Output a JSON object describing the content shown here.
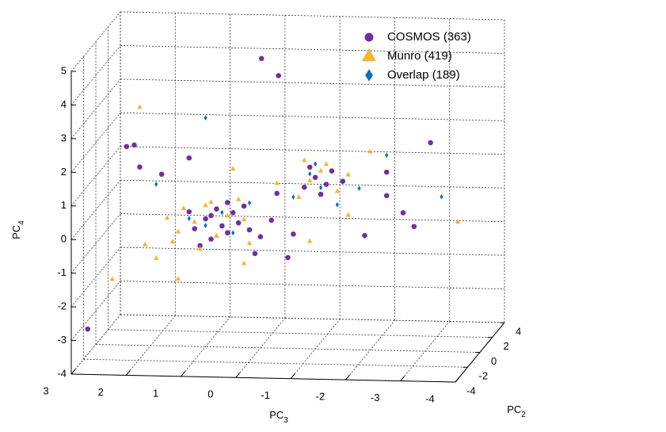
{
  "chart_data": {
    "type": "scatter3d",
    "xlabel": {
      "text": "PC",
      "sub": "3"
    },
    "ylabel": {
      "text": "PC",
      "sub": "2"
    },
    "zlabel": {
      "text": "PC",
      "sub": "4"
    },
    "xlim": [
      3,
      -4
    ],
    "xticks": [
      3,
      2,
      1,
      0,
      -1,
      -2,
      -3,
      -4
    ],
    "ylim": [
      -4,
      4
    ],
    "yticks": [
      -4,
      -2,
      0,
      2,
      4
    ],
    "zlim": [
      -4,
      5
    ],
    "zticks": [
      -4,
      -3,
      -2,
      -1,
      0,
      1,
      2,
      3,
      4,
      5
    ],
    "grid": true,
    "legend": "upper right",
    "series": [
      {
        "name": "COSMOS (363)",
        "color": "#7030a0",
        "marker": "circle",
        "x": [
          1.2,
          1.0,
          0.8,
          0.6,
          0.4,
          0.9,
          0.5,
          0.2,
          1.3,
          0.7,
          0.3,
          0.0,
          1.1,
          0.6,
          -0.2,
          0.9,
          -0.8,
          -1.0,
          -1.2,
          -0.9,
          -1.3,
          -1.1,
          -1.5,
          -0.02,
          -0.33,
          -3.1,
          2.44,
          2.3,
          2.7,
          -2.6,
          -2.8,
          -2.3,
          -0.5,
          0.1,
          1.8,
          2.2,
          1.3,
          -1.9,
          -2.3,
          -0.3,
          -0.6
        ],
        "y": [
          0,
          0,
          0,
          0,
          0,
          0,
          0,
          0,
          0,
          0,
          0,
          0,
          0,
          0,
          0,
          0,
          0,
          0,
          0,
          0,
          0,
          0,
          0,
          0,
          0,
          0,
          0,
          0,
          -4,
          0,
          0,
          0,
          0,
          0,
          0,
          0,
          0,
          0,
          0,
          0,
          0
        ],
        "z": [
          -0.5,
          -0.2,
          0.1,
          -0.6,
          -0.3,
          -0.8,
          0.0,
          -0.5,
          0.0,
          -0.4,
          0.2,
          -0.7,
          -1.0,
          0.3,
          -0.2,
          -0.1,
          0.8,
          1.1,
          0.9,
          1.4,
          1.3,
          0.6,
          1.0,
          4.6,
          4.1,
          2.2,
          1.9,
          1.95,
          -2.65,
          0.1,
          -0.3,
          0.6,
          -1.3,
          -1.2,
          1.1,
          1.3,
          1.6,
          -0.6,
          1.3,
          0.6,
          -0.6
        ]
      },
      {
        "name": "Munro (419)",
        "color": "#f2b632",
        "marker": "triangle",
        "x": [
          1.5,
          1.4,
          1.2,
          1.0,
          0.8,
          0.6,
          0.4,
          1.1,
          1.6,
          0.2,
          0.9,
          1.7,
          0.3,
          1.9,
          2.1,
          -0.7,
          -0.9,
          -1.1,
          -0.8,
          -1.4,
          -1.2,
          -1.6,
          2.2,
          2.7,
          -3.6,
          0.5,
          -0.3,
          1.5,
          -0.9,
          -2.0,
          -1.6,
          0.3
        ],
        "y": [
          0,
          0,
          0,
          0,
          0,
          0,
          0,
          0,
          0,
          0,
          0,
          0,
          0,
          0,
          0,
          0,
          0,
          0,
          0,
          0,
          0,
          0,
          0,
          0,
          0,
          0,
          0,
          0,
          0,
          0,
          0,
          0
        ],
        "z": [
          -0.6,
          0.1,
          -0.3,
          0.2,
          -0.7,
          -0.1,
          0.4,
          -1.1,
          -0.9,
          -0.9,
          0.3,
          -0.2,
          -0.2,
          -1.4,
          -1.0,
          0.5,
          1.0,
          1.3,
          1.6,
          0.7,
          1.5,
          1.2,
          3.08,
          -2.05,
          -0.14,
          1.3,
          0.9,
          -2.0,
          -0.8,
          1.9,
          0.0,
          -1.5
        ]
      },
      {
        "name": "Overlap (189)",
        "color": "#0070c0",
        "marker": "diamond",
        "x": [
          1.0,
          0.7,
          0.5,
          1.3,
          -0.9,
          -1.1,
          -1.0,
          1.0,
          -2.3,
          -3.3,
          -0.6,
          -1.4,
          0.2,
          -1.8,
          1.9
        ],
        "y": [
          0,
          0,
          0,
          0,
          0,
          0,
          0,
          0,
          0,
          0,
          0,
          0,
          0,
          0,
          0
        ],
        "z": [
          -0.4,
          0.0,
          -0.6,
          -0.2,
          1.2,
          0.8,
          1.5,
          2.8,
          1.8,
          0.6,
          0.5,
          0.3,
          0.3,
          0.8,
          0.8
        ]
      }
    ]
  }
}
